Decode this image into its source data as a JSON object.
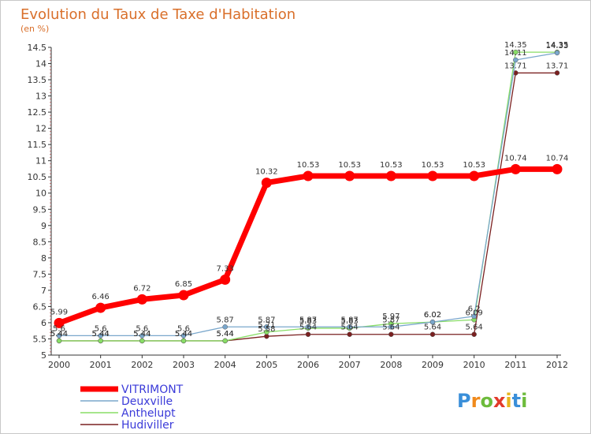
{
  "chart_data": {
    "type": "line",
    "title": "Evolution du Taux de Taxe d'Habitation",
    "subtitle": "(en %)",
    "categories": [
      "2000",
      "2001",
      "2002",
      "2003",
      "2004",
      "2005",
      "2006",
      "2007",
      "2008",
      "2009",
      "2010",
      "2011",
      "2012"
    ],
    "ylim": [
      5,
      14.5
    ],
    "yticks": [
      "5",
      "5.5",
      "6",
      "6.5",
      "7",
      "7.5",
      "8",
      "8.5",
      "9",
      "9.5",
      "10",
      "10.5",
      "11",
      "11.5",
      "12",
      "12.5",
      "13",
      "13.5",
      "14",
      "14.5"
    ],
    "series": [
      {
        "name": "VITRIMONT",
        "color": "#ff0000",
        "values": [
          5.99,
          6.46,
          6.72,
          6.85,
          7.33,
          10.32,
          10.53,
          10.53,
          10.53,
          10.53,
          10.53,
          10.74,
          10.74
        ],
        "labels": [
          "5.99",
          "6.46",
          "6.72",
          "6.85",
          "7.33",
          "10.32",
          "10.53",
          "10.53",
          "10.53",
          "10.53",
          "10.53",
          "10.74",
          "10.74"
        ]
      },
      {
        "name": "Deuxville",
        "color": "#7aa7cc",
        "values": [
          5.6,
          5.6,
          5.6,
          5.6,
          5.87,
          5.87,
          5.87,
          5.87,
          5.87,
          6.02,
          6.2,
          14.11,
          14.33
        ],
        "labels": [
          "5.6",
          "5.6",
          "5.6",
          "5.6",
          "5.87",
          "5.87",
          "5.87",
          "5.87",
          "5.87",
          "6.02",
          "6.2",
          "14.11",
          "14.33"
        ]
      },
      {
        "name": "Anthelupt",
        "color": "#88dd66",
        "values": [
          5.44,
          5.44,
          5.44,
          5.44,
          5.44,
          5.71,
          5.83,
          5.83,
          5.97,
          6.02,
          6.09,
          14.35,
          14.35
        ],
        "labels": [
          "5.44",
          "5.44",
          "5.44",
          "5.44",
          "5.44",
          "5.71",
          "5.83",
          "5.83",
          "5.97",
          "6.02",
          "6.09",
          "14.35",
          "14.35"
        ]
      },
      {
        "name": "Hudiviller",
        "color": "#7a2020",
        "values": [
          5.44,
          5.44,
          5.44,
          5.44,
          5.44,
          5.58,
          5.64,
          5.64,
          5.64,
          5.64,
          5.64,
          13.71,
          13.71
        ],
        "labels": [
          "5.44",
          "5.44",
          "5.44",
          "5.44",
          "5.44",
          "5.58",
          "5.64",
          "5.64",
          "5.64",
          "5.64",
          "5.64",
          "13.71",
          "13.71"
        ]
      }
    ],
    "legend_position": "bottom-left",
    "grid": false
  },
  "logo": {
    "letters": [
      "P",
      "r",
      "o",
      "x",
      "i",
      "t",
      "i"
    ],
    "colors": [
      "#3a8fd9",
      "#f08a1c",
      "#6dbb3c",
      "#e23a2a",
      "#e8b51c",
      "#3a8fd9",
      "#6dbb3c"
    ]
  },
  "colors": {
    "title": "#d96f2a",
    "legend_text": "#3b3bd9",
    "axis": "#333333"
  }
}
